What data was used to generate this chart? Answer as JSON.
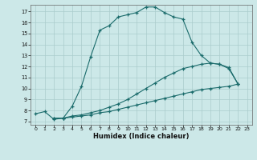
{
  "xlabel": "Humidex (Indice chaleur)",
  "background_color": "#cce8e8",
  "grid_color": "#aacccc",
  "line_color": "#1a6b6b",
  "xlim": [
    -0.5,
    23.5
  ],
  "ylim": [
    6.7,
    17.6
  ],
  "xticks": [
    0,
    1,
    2,
    3,
    4,
    5,
    6,
    7,
    8,
    9,
    10,
    11,
    12,
    13,
    14,
    15,
    16,
    17,
    18,
    19,
    20,
    21,
    22,
    23
  ],
  "yticks": [
    7,
    8,
    9,
    10,
    11,
    12,
    13,
    14,
    15,
    16,
    17
  ],
  "line1_x": [
    0,
    1,
    2,
    3,
    4,
    5,
    6,
    7,
    8,
    9,
    10,
    11,
    12,
    13,
    14,
    15,
    16,
    17,
    18,
    19,
    20,
    21,
    22
  ],
  "line1_y": [
    7.7,
    7.9,
    7.2,
    7.3,
    8.4,
    10.2,
    12.9,
    15.3,
    15.7,
    16.5,
    16.7,
    16.9,
    17.4,
    17.4,
    16.9,
    16.5,
    16.3,
    14.2,
    13.0,
    12.3,
    12.2,
    11.9,
    10.4
  ],
  "line2_x": [
    2,
    3,
    4,
    5,
    6,
    7,
    8,
    9,
    10,
    11,
    12,
    13,
    14,
    15,
    16,
    17,
    18,
    19,
    20,
    21,
    22
  ],
  "line2_y": [
    7.3,
    7.3,
    7.5,
    7.6,
    7.8,
    8.0,
    8.3,
    8.6,
    9.0,
    9.5,
    10.0,
    10.5,
    11.0,
    11.4,
    11.8,
    12.0,
    12.2,
    12.3,
    12.2,
    11.8,
    10.4
  ],
  "line3_x": [
    2,
    3,
    4,
    5,
    6,
    7,
    8,
    9,
    10,
    11,
    12,
    13,
    14,
    15,
    16,
    17,
    18,
    19,
    20,
    21,
    22
  ],
  "line3_y": [
    7.3,
    7.3,
    7.4,
    7.5,
    7.6,
    7.8,
    7.9,
    8.1,
    8.3,
    8.5,
    8.7,
    8.9,
    9.1,
    9.3,
    9.5,
    9.7,
    9.9,
    10.0,
    10.1,
    10.2,
    10.4
  ]
}
